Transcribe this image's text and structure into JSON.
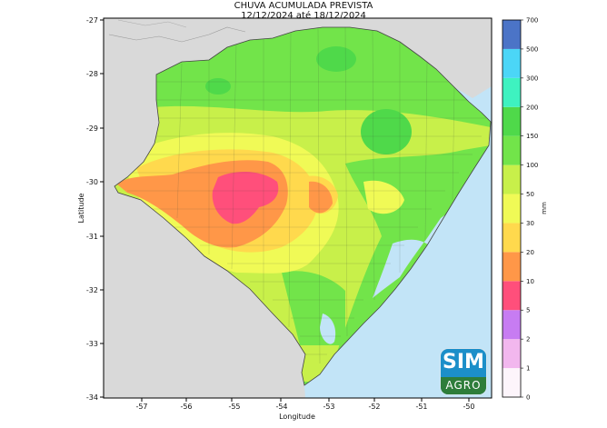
{
  "title": "CHUVA ACUMULADA PREVISTA",
  "subtitle": "12/12/2024 até 18/12/2024",
  "xlabel": "Longitude",
  "ylabel": "Latitude",
  "x_ticks": [
    "-57",
    "-56",
    "-55",
    "-54",
    "-53",
    "-52",
    "-51",
    "-50"
  ],
  "y_ticks": [
    "-27",
    "-28",
    "-29",
    "-30",
    "-31",
    "-32",
    "-33",
    "-34"
  ],
  "colorbar": {
    "unit": "mm",
    "levels": [
      "0",
      "1",
      "2",
      "5",
      "10",
      "20",
      "30",
      "50",
      "100",
      "150",
      "200",
      "300",
      "500",
      "700"
    ],
    "colors": [
      "#fdf5fb",
      "#f2b7ee",
      "#c77cf2",
      "#ff4f7b",
      "#ff9748",
      "#ffd94d",
      "#f0fa56",
      "#c8f04a",
      "#72e44a",
      "#4fd94a",
      "#3ef2c0",
      "#4bd6f7",
      "#4b74c7",
      "#4a4aa8"
    ]
  },
  "logo": {
    "line1": "SIM",
    "line2": "AGRO"
  },
  "colors": {
    "ocean": "#c2e4f7",
    "land_outside": "#d9d9d9",
    "background": "#ffffff"
  }
}
